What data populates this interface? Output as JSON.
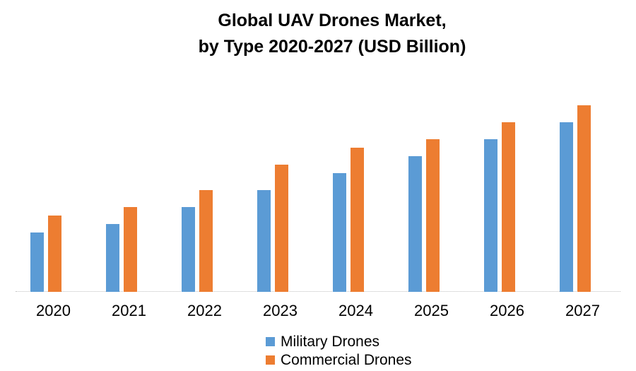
{
  "title": {
    "line1": "Global UAV Drones Market,",
    "line2": "by Type 2020-2027 (USD Billion)"
  },
  "chart_data": {
    "type": "bar",
    "title": "Global UAV Drones Market, by Type 2020-2027 (USD Billion)",
    "units": "USD Billion",
    "categories": [
      "2020",
      "2021",
      "2022",
      "2023",
      "2024",
      "2025",
      "2026",
      "2027"
    ],
    "series": [
      {
        "name": "Military Drones",
        "color": "#5B9BD5",
        "values": [
          7,
          8,
          10,
          12,
          14,
          16,
          18,
          20
        ]
      },
      {
        "name": "Commercial Drones",
        "color": "#ED7D31",
        "values": [
          9,
          10,
          12,
          15,
          17,
          18,
          20,
          22
        ]
      }
    ],
    "xlabel": "",
    "ylabel": "",
    "ylim": [
      0,
      25
    ],
    "y_axis_visible": false,
    "gridlines": false,
    "legend_position": "bottom-left-aligned",
    "axis_line_color": "#bfbfbf",
    "axis_line_style": "dotted"
  }
}
